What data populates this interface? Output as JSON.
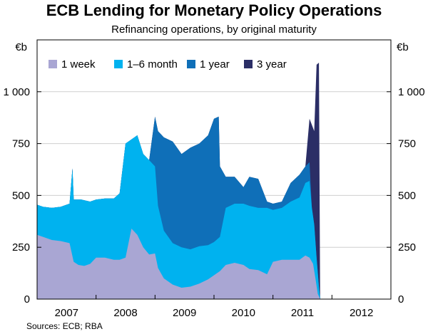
{
  "chart_data": {
    "type": "area",
    "stacked": true,
    "title": "ECB Lending for Monetary Policy Operations",
    "subtitle": "Refinancing operations, by original maturity",
    "unit_left": "€b",
    "unit_right": "€b",
    "source": "Sources: ECB; RBA",
    "ylim": [
      0,
      1250
    ],
    "xlim": [
      2007.0,
      2013.0
    ],
    "y_ticks": [
      0,
      250,
      500,
      750,
      1000
    ],
    "y_tick_labels": [
      "0",
      "250",
      "500",
      "750",
      "1 000"
    ],
    "x_tick_labels": [
      "2007",
      "2008",
      "2009",
      "2010",
      "2011",
      "2012"
    ],
    "grid": true,
    "legend_position": "top-left",
    "series": [
      {
        "name": "1 week",
        "color": "#a9a6d3",
        "points": [
          [
            2007.0,
            310
          ],
          [
            2007.1,
            300
          ],
          [
            2007.25,
            285
          ],
          [
            2007.4,
            280
          ],
          [
            2007.55,
            270
          ],
          [
            2007.62,
            180
          ],
          [
            2007.7,
            165
          ],
          [
            2007.8,
            160
          ],
          [
            2007.9,
            170
          ],
          [
            2008.0,
            200
          ],
          [
            2008.15,
            200
          ],
          [
            2008.3,
            190
          ],
          [
            2008.4,
            190
          ],
          [
            2008.5,
            200
          ],
          [
            2008.6,
            340
          ],
          [
            2008.7,
            310
          ],
          [
            2008.8,
            250
          ],
          [
            2008.9,
            215
          ],
          [
            2009.0,
            220
          ],
          [
            2009.05,
            150
          ],
          [
            2009.15,
            100
          ],
          [
            2009.3,
            70
          ],
          [
            2009.45,
            55
          ],
          [
            2009.6,
            60
          ],
          [
            2009.75,
            75
          ],
          [
            2009.9,
            95
          ],
          [
            2010.0,
            115
          ],
          [
            2010.1,
            135
          ],
          [
            2010.2,
            165
          ],
          [
            2010.35,
            175
          ],
          [
            2010.5,
            165
          ],
          [
            2010.6,
            145
          ],
          [
            2010.75,
            140
          ],
          [
            2010.9,
            120
          ],
          [
            2011.0,
            180
          ],
          [
            2011.15,
            190
          ],
          [
            2011.3,
            190
          ],
          [
            2011.45,
            190
          ],
          [
            2011.55,
            210
          ],
          [
            2011.62,
            200
          ],
          [
            2011.68,
            170
          ],
          [
            2011.72,
            100
          ],
          [
            2011.76,
            25
          ],
          [
            2011.8,
            0
          ]
        ]
      },
      {
        "name": "1–6 month",
        "color": "#00b2ef",
        "points": [
          [
            2007.0,
            455
          ],
          [
            2007.1,
            445
          ],
          [
            2007.25,
            440
          ],
          [
            2007.4,
            445
          ],
          [
            2007.55,
            460
          ],
          [
            2007.6,
            630
          ],
          [
            2007.62,
            480
          ],
          [
            2007.75,
            480
          ],
          [
            2007.9,
            470
          ],
          [
            2008.0,
            480
          ],
          [
            2008.15,
            485
          ],
          [
            2008.3,
            485
          ],
          [
            2008.4,
            510
          ],
          [
            2008.5,
            750
          ],
          [
            2008.6,
            770
          ],
          [
            2008.7,
            790
          ],
          [
            2008.8,
            700
          ],
          [
            2008.9,
            670
          ],
          [
            2009.0,
            640
          ],
          [
            2009.05,
            450
          ],
          [
            2009.15,
            330
          ],
          [
            2009.3,
            270
          ],
          [
            2009.45,
            250
          ],
          [
            2009.6,
            240
          ],
          [
            2009.75,
            255
          ],
          [
            2009.9,
            260
          ],
          [
            2010.0,
            275
          ],
          [
            2010.1,
            300
          ],
          [
            2010.2,
            440
          ],
          [
            2010.35,
            460
          ],
          [
            2010.5,
            460
          ],
          [
            2010.6,
            450
          ],
          [
            2010.75,
            440
          ],
          [
            2010.9,
            440
          ],
          [
            2011.0,
            430
          ],
          [
            2011.15,
            440
          ],
          [
            2011.3,
            470
          ],
          [
            2011.45,
            490
          ],
          [
            2011.55,
            560
          ],
          [
            2011.62,
            570
          ],
          [
            2011.66,
            440
          ],
          [
            2011.7,
            360
          ],
          [
            2011.74,
            200
          ],
          [
            2011.78,
            60
          ],
          [
            2011.8,
            0
          ]
        ]
      },
      {
        "name": "1 year",
        "color": "#0f6fb8",
        "points": [
          [
            2007.0,
            455
          ],
          [
            2007.1,
            445
          ],
          [
            2007.25,
            440
          ],
          [
            2007.4,
            445
          ],
          [
            2007.55,
            460
          ],
          [
            2007.6,
            630
          ],
          [
            2007.62,
            480
          ],
          [
            2007.75,
            480
          ],
          [
            2007.9,
            470
          ],
          [
            2008.0,
            480
          ],
          [
            2008.15,
            485
          ],
          [
            2008.3,
            485
          ],
          [
            2008.4,
            510
          ],
          [
            2008.5,
            750
          ],
          [
            2008.6,
            770
          ],
          [
            2008.7,
            790
          ],
          [
            2008.8,
            700
          ],
          [
            2008.9,
            670
          ],
          [
            2009.0,
            880
          ],
          [
            2009.05,
            810
          ],
          [
            2009.15,
            780
          ],
          [
            2009.3,
            760
          ],
          [
            2009.45,
            700
          ],
          [
            2009.6,
            730
          ],
          [
            2009.75,
            750
          ],
          [
            2009.9,
            790
          ],
          [
            2010.0,
            870
          ],
          [
            2010.08,
            880
          ],
          [
            2010.1,
            640
          ],
          [
            2010.2,
            590
          ],
          [
            2010.35,
            590
          ],
          [
            2010.5,
            540
          ],
          [
            2010.6,
            590
          ],
          [
            2010.75,
            580
          ],
          [
            2010.9,
            470
          ],
          [
            2011.0,
            460
          ],
          [
            2011.15,
            470
          ],
          [
            2011.3,
            560
          ],
          [
            2011.45,
            600
          ],
          [
            2011.55,
            640
          ],
          [
            2011.62,
            660
          ],
          [
            2011.66,
            440
          ],
          [
            2011.7,
            360
          ],
          [
            2011.74,
            200
          ],
          [
            2011.78,
            60
          ],
          [
            2011.8,
            0
          ]
        ]
      },
      {
        "name": "3 year",
        "color": "#2b2e66",
        "points": [
          [
            2007.0,
            455
          ],
          [
            2007.1,
            445
          ],
          [
            2007.25,
            440
          ],
          [
            2007.4,
            445
          ],
          [
            2007.55,
            460
          ],
          [
            2007.6,
            630
          ],
          [
            2007.62,
            480
          ],
          [
            2007.75,
            480
          ],
          [
            2007.9,
            470
          ],
          [
            2008.0,
            480
          ],
          [
            2008.15,
            485
          ],
          [
            2008.3,
            485
          ],
          [
            2008.4,
            510
          ],
          [
            2008.5,
            750
          ],
          [
            2008.6,
            770
          ],
          [
            2008.7,
            790
          ],
          [
            2008.8,
            700
          ],
          [
            2008.9,
            670
          ],
          [
            2009.0,
            880
          ],
          [
            2009.05,
            810
          ],
          [
            2009.15,
            780
          ],
          [
            2009.3,
            760
          ],
          [
            2009.45,
            700
          ],
          [
            2009.6,
            730
          ],
          [
            2009.75,
            750
          ],
          [
            2009.9,
            790
          ],
          [
            2010.0,
            870
          ],
          [
            2010.08,
            880
          ],
          [
            2010.1,
            640
          ],
          [
            2010.2,
            590
          ],
          [
            2010.35,
            590
          ],
          [
            2010.5,
            540
          ],
          [
            2010.6,
            590
          ],
          [
            2010.75,
            580
          ],
          [
            2010.9,
            470
          ],
          [
            2011.0,
            460
          ],
          [
            2011.15,
            470
          ],
          [
            2011.3,
            560
          ],
          [
            2011.45,
            600
          ],
          [
            2011.55,
            640
          ],
          [
            2011.62,
            870
          ],
          [
            2011.66,
            840
          ],
          [
            2011.7,
            810
          ],
          [
            2011.74,
            1130
          ],
          [
            2011.78,
            1140
          ],
          [
            2011.8,
            0
          ]
        ]
      }
    ]
  }
}
